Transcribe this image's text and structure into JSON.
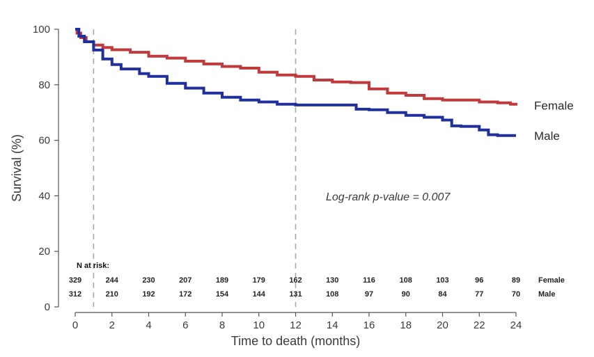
{
  "chart_data": {
    "type": "line",
    "subtype": "kaplan-meier survival curve",
    "xlabel": "Time to death (months)",
    "ylabel": "Survival (%)",
    "xlim": [
      0,
      24
    ],
    "ylim": [
      0,
      100
    ],
    "x_ticks": [
      0,
      2,
      4,
      6,
      8,
      10,
      12,
      14,
      16,
      18,
      20,
      22,
      24
    ],
    "y_ticks": [
      0,
      20,
      40,
      60,
      80,
      100
    ],
    "grid": false,
    "reference_lines_x": [
      1,
      12
    ],
    "legend_placement": "right, at line ends",
    "series": [
      {
        "name": "Female",
        "color": "#c0393b",
        "points": [
          [
            0,
            100
          ],
          [
            0.1,
            98.6
          ],
          [
            0.3,
            97
          ],
          [
            0.6,
            95.5
          ],
          [
            1,
            94.3
          ],
          [
            1.5,
            93.4
          ],
          [
            2,
            92.6
          ],
          [
            3,
            91.7
          ],
          [
            4,
            90.3
          ],
          [
            5,
            89.6
          ],
          [
            6,
            88.5
          ],
          [
            7,
            87.5
          ],
          [
            8,
            86.6
          ],
          [
            9,
            86
          ],
          [
            10,
            84.5
          ],
          [
            11,
            83.5
          ],
          [
            12,
            83
          ],
          [
            13,
            81.7
          ],
          [
            14,
            81
          ],
          [
            15,
            80.8
          ],
          [
            16,
            78.5
          ],
          [
            17,
            77
          ],
          [
            18,
            76.2
          ],
          [
            19,
            75
          ],
          [
            20,
            74.5
          ],
          [
            21,
            74.5
          ],
          [
            22,
            73.8
          ],
          [
            23,
            73.5
          ],
          [
            23.7,
            73
          ],
          [
            24,
            72.5
          ]
        ]
      },
      {
        "name": "Male",
        "color": "#1f2f9c",
        "points": [
          [
            0,
            100
          ],
          [
            0.2,
            97.5
          ],
          [
            0.5,
            95.5
          ],
          [
            1,
            92.5
          ],
          [
            1.5,
            89.3
          ],
          [
            2,
            87.3
          ],
          [
            2.5,
            85.7
          ],
          [
            3.5,
            84
          ],
          [
            4,
            83
          ],
          [
            5,
            80.5
          ],
          [
            6,
            78.8
          ],
          [
            7,
            77
          ],
          [
            8,
            75.5
          ],
          [
            9,
            74.5
          ],
          [
            10,
            73.8
          ],
          [
            11,
            73
          ],
          [
            12,
            72.7
          ],
          [
            13,
            72.7
          ],
          [
            15,
            72.7
          ],
          [
            15.3,
            71.2
          ],
          [
            16,
            71
          ],
          [
            17,
            70
          ],
          [
            18,
            69
          ],
          [
            19,
            68.3
          ],
          [
            20,
            67.3
          ],
          [
            20.5,
            65.2
          ],
          [
            21,
            65
          ],
          [
            22,
            63.7
          ],
          [
            22.5,
            62
          ],
          [
            23,
            61.7
          ],
          [
            24,
            61.7
          ]
        ]
      }
    ],
    "annotation": "Log-rank p-value = 0.007",
    "risk_table": {
      "title": "N at risk:",
      "times": [
        0,
        2,
        4,
        6,
        8,
        10,
        12,
        14,
        16,
        18,
        20,
        22,
        24
      ],
      "rows": [
        {
          "name": "Female",
          "values": [
            329,
            244,
            230,
            207,
            189,
            179,
            162,
            130,
            116,
            108,
            103,
            96,
            89
          ]
        },
        {
          "name": "Male",
          "values": [
            312,
            210,
            192,
            172,
            154,
            144,
            131,
            108,
            97,
            90,
            84,
            77,
            70
          ]
        }
      ]
    }
  }
}
